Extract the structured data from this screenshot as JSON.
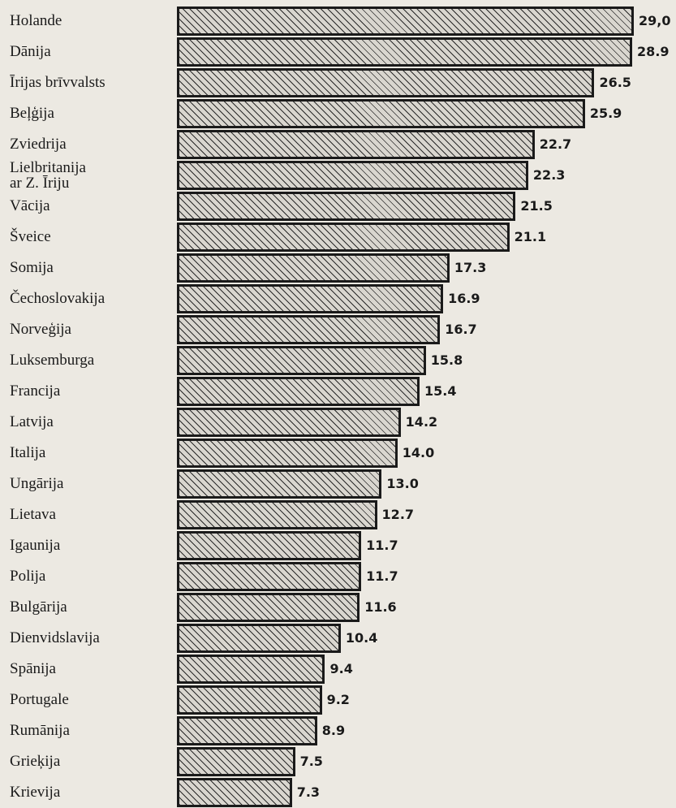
{
  "chart_data": {
    "type": "bar",
    "orientation": "horizontal",
    "categories": [
      "Holande",
      "Dānija",
      "Īrijas brīvvalsts",
      "Beļģija",
      "Zviedrija",
      "Lielbritanija\nar Z. Īriju",
      "Vācija",
      "Šveice",
      "Somija",
      "Čechoslovakija",
      "Norveģija",
      "Luksemburga",
      "Francija",
      "Latvija",
      "Italija",
      "Ungārija",
      "Lietava",
      "Igaunija",
      "Polija",
      "Bulgārija",
      "Dienvidslavija",
      "Spānija",
      "Portugale",
      "Rumānija",
      "Grieķija",
      "Krievija"
    ],
    "values": [
      29.0,
      28.9,
      26.5,
      25.9,
      22.7,
      22.3,
      21.5,
      21.1,
      17.3,
      16.9,
      16.7,
      15.8,
      15.4,
      14.2,
      14.0,
      13.0,
      12.7,
      11.7,
      11.7,
      11.6,
      10.4,
      9.4,
      9.2,
      8.9,
      7.5,
      7.3
    ],
    "value_labels": [
      "29,0",
      "28.9",
      "26.5",
      "25.9",
      "22.7",
      "22.3",
      "21.5",
      "21.1",
      "17.3",
      "16.9",
      "16.7",
      "15.8",
      "15.4",
      "14.2",
      "14.0",
      "13.0",
      "12.7",
      "11.7",
      "11.7",
      "11.6",
      "10.4",
      "9.4",
      "9.2",
      "8.9",
      "7.5",
      "7.3"
    ],
    "color": "#1a1a1a"
  }
}
